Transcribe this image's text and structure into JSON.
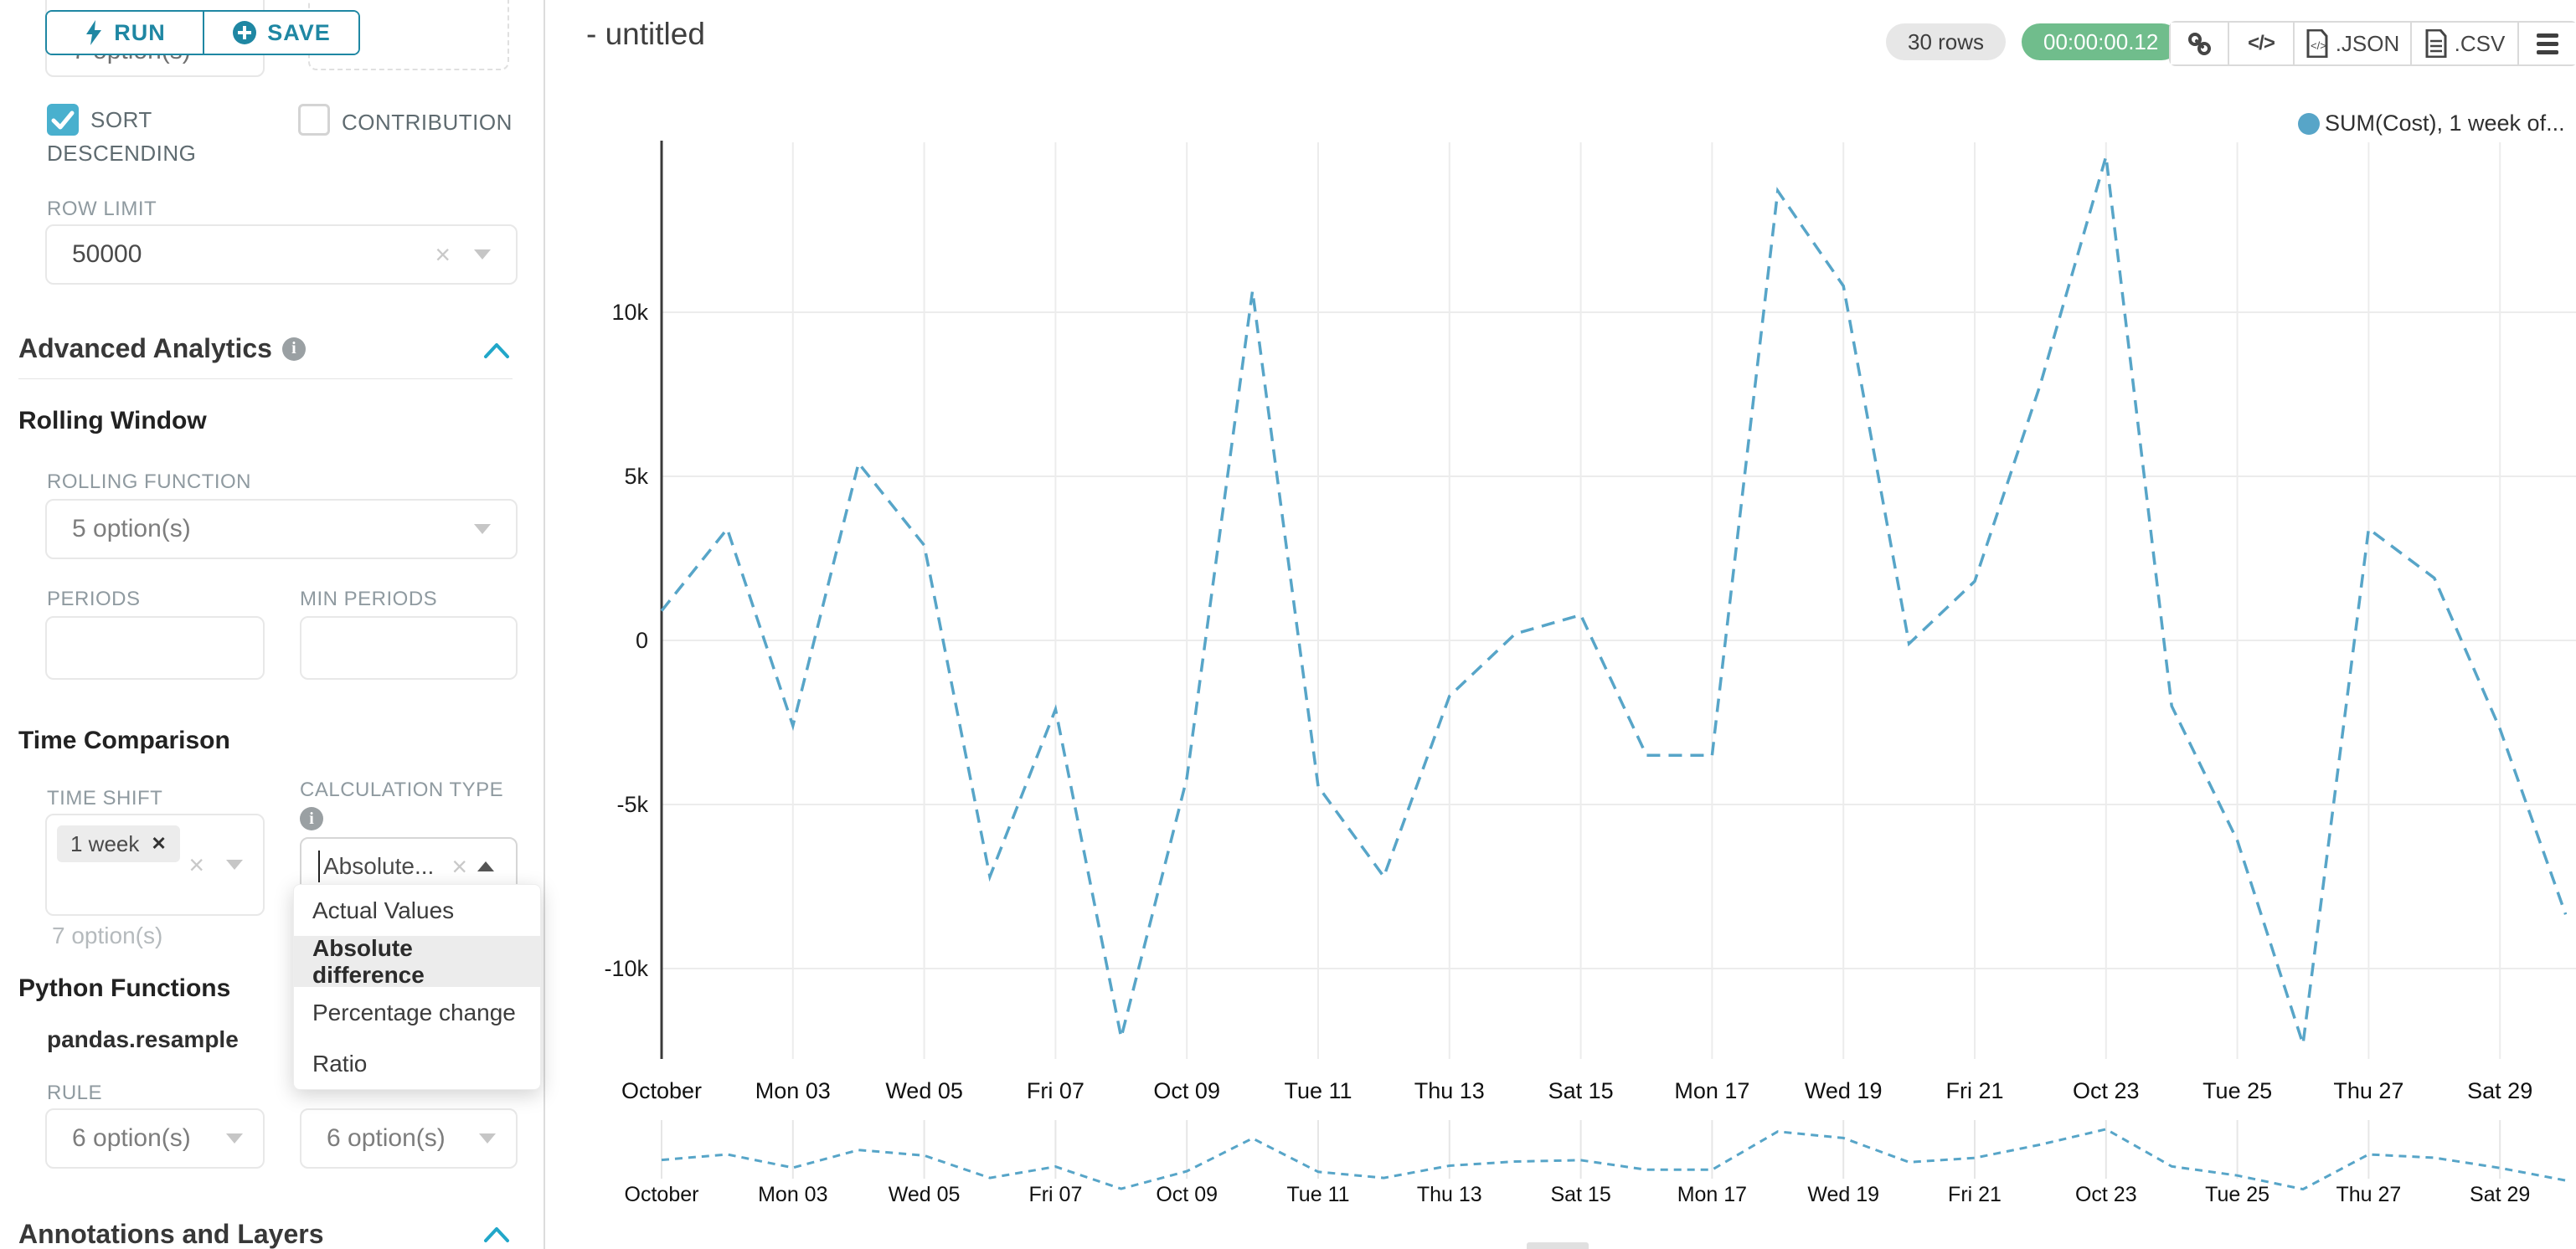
{
  "sidebar": {
    "run_label": "RUN",
    "save_label": "SAVE",
    "top_partial_select_value": "7 option(s)",
    "sort_descending_line1": "SORT",
    "sort_descending_line2": "DESCENDING",
    "contribution_label": "CONTRIBUTION",
    "row_limit": {
      "label": "ROW LIMIT",
      "value": "50000"
    },
    "advanced_analytics": {
      "title": "Advanced Analytics"
    },
    "rolling_window": {
      "title": "Rolling Window",
      "rolling_function_label": "ROLLING FUNCTION",
      "rolling_function_value": "5 option(s)",
      "periods_label": "PERIODS",
      "min_periods_label": "MIN PERIODS"
    },
    "time_comparison": {
      "title": "Time Comparison",
      "time_shift_label": "TIME SHIFT",
      "time_shift_tag": "1 week",
      "time_shift_note": "7 option(s)",
      "calculation_type_label": "CALCULATION TYPE",
      "calculation_type_value": "Absolute...",
      "dropdown_options": [
        "Actual Values",
        "Absolute difference",
        "Percentage change",
        "Ratio"
      ],
      "dropdown_selected": "Absolute difference"
    },
    "python_functions": {
      "title": "Python Functions",
      "function_name": "pandas.resample",
      "rule_label": "RULE",
      "rule_value": "6 option(s)",
      "method_value": "6 option(s)"
    },
    "annotations": {
      "title": "Annotations and Layers"
    }
  },
  "header": {
    "title": "- untitled",
    "rows_badge": "30 rows",
    "timer": "00:00:00.12",
    "json_label": ".JSON",
    "csv_label": ".CSV"
  },
  "legend": {
    "label": "SUM(Cost), 1 week of...",
    "color": "#57a5c8"
  },
  "chart_data": {
    "type": "line",
    "title": "- untitled",
    "grid": true,
    "legend_position": "top-right",
    "line_style": "dashed",
    "x_tick_labels": [
      "October",
      "Mon 03",
      "Wed 05",
      "Fri 07",
      "Oct 09",
      "Tue 11",
      "Thu 13",
      "Sat 15",
      "Mon 17",
      "Wed 19",
      "Fri 21",
      "Oct 23",
      "Tue 25",
      "Thu 27",
      "Sat 29"
    ],
    "y_tick_labels": [
      "10k",
      "5k",
      "0",
      "-5k",
      "-10k"
    ],
    "y_tick_values": [
      10000,
      5000,
      0,
      -5000,
      -10000
    ],
    "ylim": [
      -12600,
      15200
    ],
    "x": [
      "Oct 01",
      "Oct 02",
      "Oct 03",
      "Oct 04",
      "Oct 05",
      "Oct 06",
      "Oct 07",
      "Oct 08",
      "Oct 09",
      "Oct 10",
      "Oct 11",
      "Oct 12",
      "Oct 13",
      "Oct 14",
      "Oct 15",
      "Oct 16",
      "Oct 17",
      "Oct 18",
      "Oct 19",
      "Oct 20",
      "Oct 21",
      "Oct 22",
      "Oct 23",
      "Oct 24",
      "Oct 25",
      "Oct 26",
      "Oct 27",
      "Oct 28",
      "Oct 29",
      "Oct 30"
    ],
    "series": [
      {
        "name": "SUM(Cost), 1 week of...",
        "color": "#57a5c8",
        "values": [
          900,
          3400,
          -2600,
          5400,
          2900,
          -7200,
          -2100,
          -12100,
          -4200,
          10650,
          -4450,
          -7200,
          -1700,
          200,
          775,
          -3500,
          -3500,
          13700,
          10800,
          -100,
          1800,
          7800,
          14750,
          -2000,
          -6100,
          -12300,
          3400,
          1900,
          -2700,
          -8350
        ]
      }
    ],
    "has_mini_preview": true
  }
}
